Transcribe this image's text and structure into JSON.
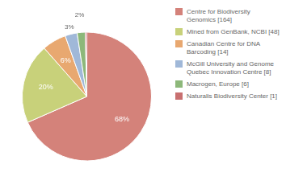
{
  "chart_data": {
    "type": "pie",
    "categories": [
      "Centre for Biodiversity\nGenomics [164]",
      "Mined from GenBank, NCBI [48]",
      "Canadian Centre for DNA\nBarcoding [14]",
      "McGill University and Genome\nQuebec Innovation Centre [8]",
      "Macrogen, Europe [6]",
      "Naturalis Biodiversity Center [1]"
    ],
    "values": [
      68,
      20,
      6,
      3,
      2,
      0.4
    ],
    "value_labels": [
      "68%",
      "20%",
      "6%",
      "3%",
      "2%",
      null
    ],
    "colors": [
      "#d4827a",
      "#c8d17a",
      "#e8a870",
      "#a0b8d8",
      "#8db87a",
      "#c87070"
    ],
    "data_labels": true,
    "legend": "right"
  }
}
